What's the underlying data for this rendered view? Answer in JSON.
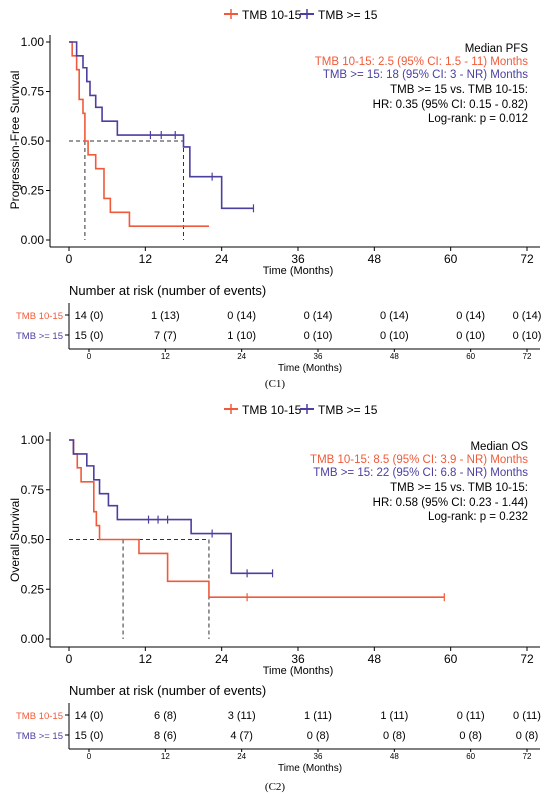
{
  "legend_items": [
    "TMB 10-15",
    "TMB >= 15"
  ],
  "colors": {
    "tmb_low": "#F05A3A",
    "tmb_high": "#4B3FA0",
    "median_line": "#333333"
  },
  "chart_data": [
    {
      "type": "line",
      "caption": "(C1)",
      "legend": [
        "TMB 10-15",
        "TMB >= 15"
      ],
      "legend_placement": "top",
      "ylabel": "Progression-Free Survival",
      "xlabel": "Time (Months)",
      "ylim": [
        0,
        1
      ],
      "xlim": [
        0,
        72
      ],
      "xticks": [
        0,
        12,
        24,
        36,
        48,
        60,
        72
      ],
      "yticks": [
        0.0,
        0.25,
        0.5,
        0.75,
        1.0
      ],
      "ytick_labels": [
        "0.00",
        "0.25",
        "0.50",
        "0.75",
        "1.00"
      ],
      "grid": false,
      "annotation_title": "Median PFS",
      "annotation_low": "TMB 10-15: 2.5 (95% CI: 1.5 - 11) Months",
      "annotation_high": "TMB >= 15: 18 (95% CI: 3 - NR) Months",
      "annotation_compare": "TMB >= 15 vs. TMB 10-15:",
      "annotation_hr": "HR: 0.35 (95% CI: 0.15 - 0.82)",
      "annotation_logrank": "Log-rank: p = 0.012",
      "medians": [
        2.5,
        18
      ],
      "series": [
        {
          "name": "TMB 10-15",
          "steps": [
            [
              0,
              1.0
            ],
            [
              0.5,
              0.93
            ],
            [
              1.2,
              0.86
            ],
            [
              1.6,
              0.71
            ],
            [
              2.2,
              0.64
            ],
            [
              2.5,
              0.5
            ],
            [
              3,
              0.43
            ],
            [
              4.2,
              0.36
            ],
            [
              5.5,
              0.21
            ],
            [
              6.5,
              0.14
            ],
            [
              9.5,
              0.07
            ],
            [
              22,
              0.07
            ]
          ],
          "censor": []
        },
        {
          "name": "TMB >= 15",
          "steps": [
            [
              0,
              1.0
            ],
            [
              1.2,
              0.93
            ],
            [
              2.2,
              0.87
            ],
            [
              2.8,
              0.8
            ],
            [
              3.3,
              0.73
            ],
            [
              4.2,
              0.67
            ],
            [
              5.2,
              0.6
            ],
            [
              7.6,
              0.53
            ],
            [
              18,
              0.47
            ],
            [
              19,
              0.32
            ],
            [
              24,
              0.16
            ],
            [
              29,
              0.16
            ]
          ],
          "censor": [
            [
              12.8,
              0.53
            ],
            [
              14.5,
              0.53
            ],
            [
              16.7,
              0.53
            ],
            [
              22.5,
              0.32
            ],
            [
              29,
              0.16
            ]
          ]
        }
      ],
      "risk_table": {
        "title": "Number at risk (number of events)",
        "xlabel": "Time (Months)",
        "times": [
          "0",
          "12",
          "24",
          "36",
          "48",
          "60",
          "72"
        ],
        "rows": [
          {
            "label": "TMB 10-15",
            "values": [
              "14 (0)",
              "1 (13)",
              "0 (14)",
              "0 (14)",
              "0 (14)",
              "0 (14)",
              "0 (14)"
            ]
          },
          {
            "label": "TMB >= 15",
            "values": [
              "15 (0)",
              "7 (7)",
              "1 (10)",
              "0 (10)",
              "0 (10)",
              "0 (10)",
              "0 (10)"
            ]
          }
        ]
      }
    },
    {
      "type": "line",
      "caption": "(C2)",
      "legend": [
        "TMB 10-15",
        "TMB >= 15"
      ],
      "legend_placement": "top",
      "ylabel": "Overall Survival",
      "xlabel": "Time (Months)",
      "ylim": [
        0,
        1
      ],
      "xlim": [
        0,
        72
      ],
      "xticks": [
        0,
        12,
        24,
        36,
        48,
        60,
        72
      ],
      "yticks": [
        0.0,
        0.25,
        0.5,
        0.75,
        1.0
      ],
      "ytick_labels": [
        "0.00",
        "0.25",
        "0.50",
        "0.75",
        "1.00"
      ],
      "grid": false,
      "annotation_title": "Median OS",
      "annotation_low": "TMB 10-15: 8.5 (95% CI: 3.9 - NR) Months",
      "annotation_high": "TMB >= 15: 22 (95% CI: 6.8 - NR) Months",
      "annotation_compare": "TMB >= 15 vs. TMB 10-15:",
      "annotation_hr": "HR: 0.58 (95% CI: 0.23 - 1.44)",
      "annotation_logrank": "Log-rank: p = 0.232",
      "medians": [
        8.5,
        22
      ],
      "series": [
        {
          "name": "TMB 10-15",
          "steps": [
            [
              0,
              1.0
            ],
            [
              0.7,
              0.93
            ],
            [
              1.3,
              0.86
            ],
            [
              1.9,
              0.79
            ],
            [
              3.9,
              0.64
            ],
            [
              4.3,
              0.57
            ],
            [
              4.8,
              0.5
            ],
            [
              8.5,
              0.5
            ],
            [
              11,
              0.43
            ],
            [
              15.5,
              0.29
            ],
            [
              22,
              0.21
            ],
            [
              59,
              0.21
            ]
          ],
          "censor": [
            [
              28,
              0.21
            ],
            [
              59,
              0.21
            ]
          ]
        },
        {
          "name": "TMB >= 15",
          "steps": [
            [
              0,
              1.0
            ],
            [
              0.7,
              0.93
            ],
            [
              2.8,
              0.87
            ],
            [
              3.9,
              0.8
            ],
            [
              4.8,
              0.73
            ],
            [
              6.2,
              0.67
            ],
            [
              7.6,
              0.6
            ],
            [
              19.2,
              0.53
            ],
            [
              25.5,
              0.33
            ],
            [
              32,
              0.33
            ]
          ],
          "censor": [
            [
              12.5,
              0.6
            ],
            [
              14,
              0.6
            ],
            [
              15.5,
              0.6
            ],
            [
              22.5,
              0.53
            ],
            [
              28,
              0.33
            ],
            [
              32,
              0.33
            ]
          ]
        }
      ],
      "risk_table": {
        "title": "Number at risk (number of events)",
        "xlabel": "Time (Months)",
        "times": [
          "0",
          "12",
          "24",
          "36",
          "48",
          "60",
          "72"
        ],
        "rows": [
          {
            "label": "TMB 10-15",
            "values": [
              "14 (0)",
              "6 (8)",
              "3 (11)",
              "1 (11)",
              "1 (11)",
              "0 (11)",
              "0 (11)"
            ]
          },
          {
            "label": "TMB >= 15",
            "values": [
              "15 (0)",
              "8 (6)",
              "4 (7)",
              "0 (8)",
              "0 (8)",
              "0 (8)",
              "0 (8)"
            ]
          }
        ]
      }
    }
  ]
}
